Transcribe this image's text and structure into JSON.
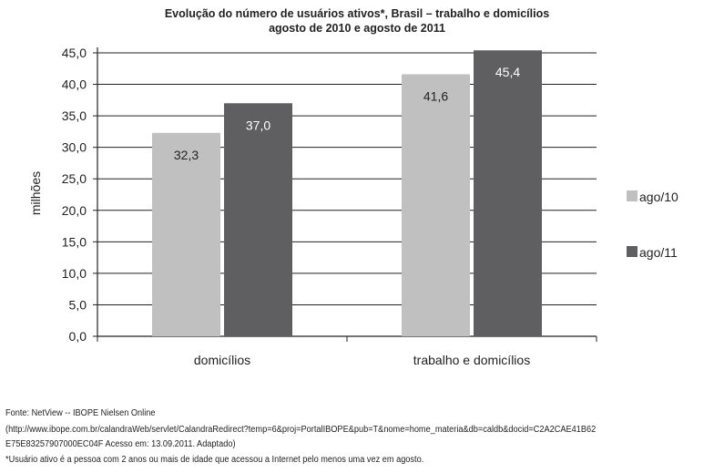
{
  "chart_data": {
    "type": "bar",
    "title": "Evolução do número de usuários ativos*, Brasil – trabalho e domicílios",
    "subtitle": "agosto de 2010 e agosto de 2011",
    "xlabel": "",
    "ylabel": "milhões",
    "ylim": [
      0,
      45
    ],
    "yticks": [
      "0,0",
      "5,0",
      "10,0",
      "15,0",
      "20,0",
      "25,0",
      "30,0",
      "35,0",
      "40,0",
      "45,0"
    ],
    "categories": [
      "domicílios",
      "trabalho e domicílios"
    ],
    "series": [
      {
        "name": "ago/10",
        "values": [
          32.3,
          41.6
        ],
        "labels": [
          "32,3",
          "41,6"
        ],
        "color": "#c0c0c0",
        "label_color": "#222222"
      },
      {
        "name": "ago/11",
        "values": [
          37.0,
          45.4
        ],
        "labels": [
          "37,0",
          "45,4"
        ],
        "color": "#5f5f61",
        "label_color": "#ffffff"
      }
    ],
    "grid": true,
    "legend": "right"
  },
  "footer": {
    "source": "Fonte: NetView -- IBOPE Nielsen Online",
    "url_line1": "(http://www.ibope.com.br/calandraWeb/servlet/CalandraRedirect?temp=6&proj=PortalIBOPE&pub=T&nome=home_materia&db=caldb&docid=C2A2CAE41B62",
    "url_line2": "E75E83257907000EC04F Acesso em: 13.09.2011. Adaptado)",
    "note": "*Usuário ativo é a pessoa com 2 anos ou mais de idade que acessou a Internet pelo menos uma vez em agosto."
  }
}
